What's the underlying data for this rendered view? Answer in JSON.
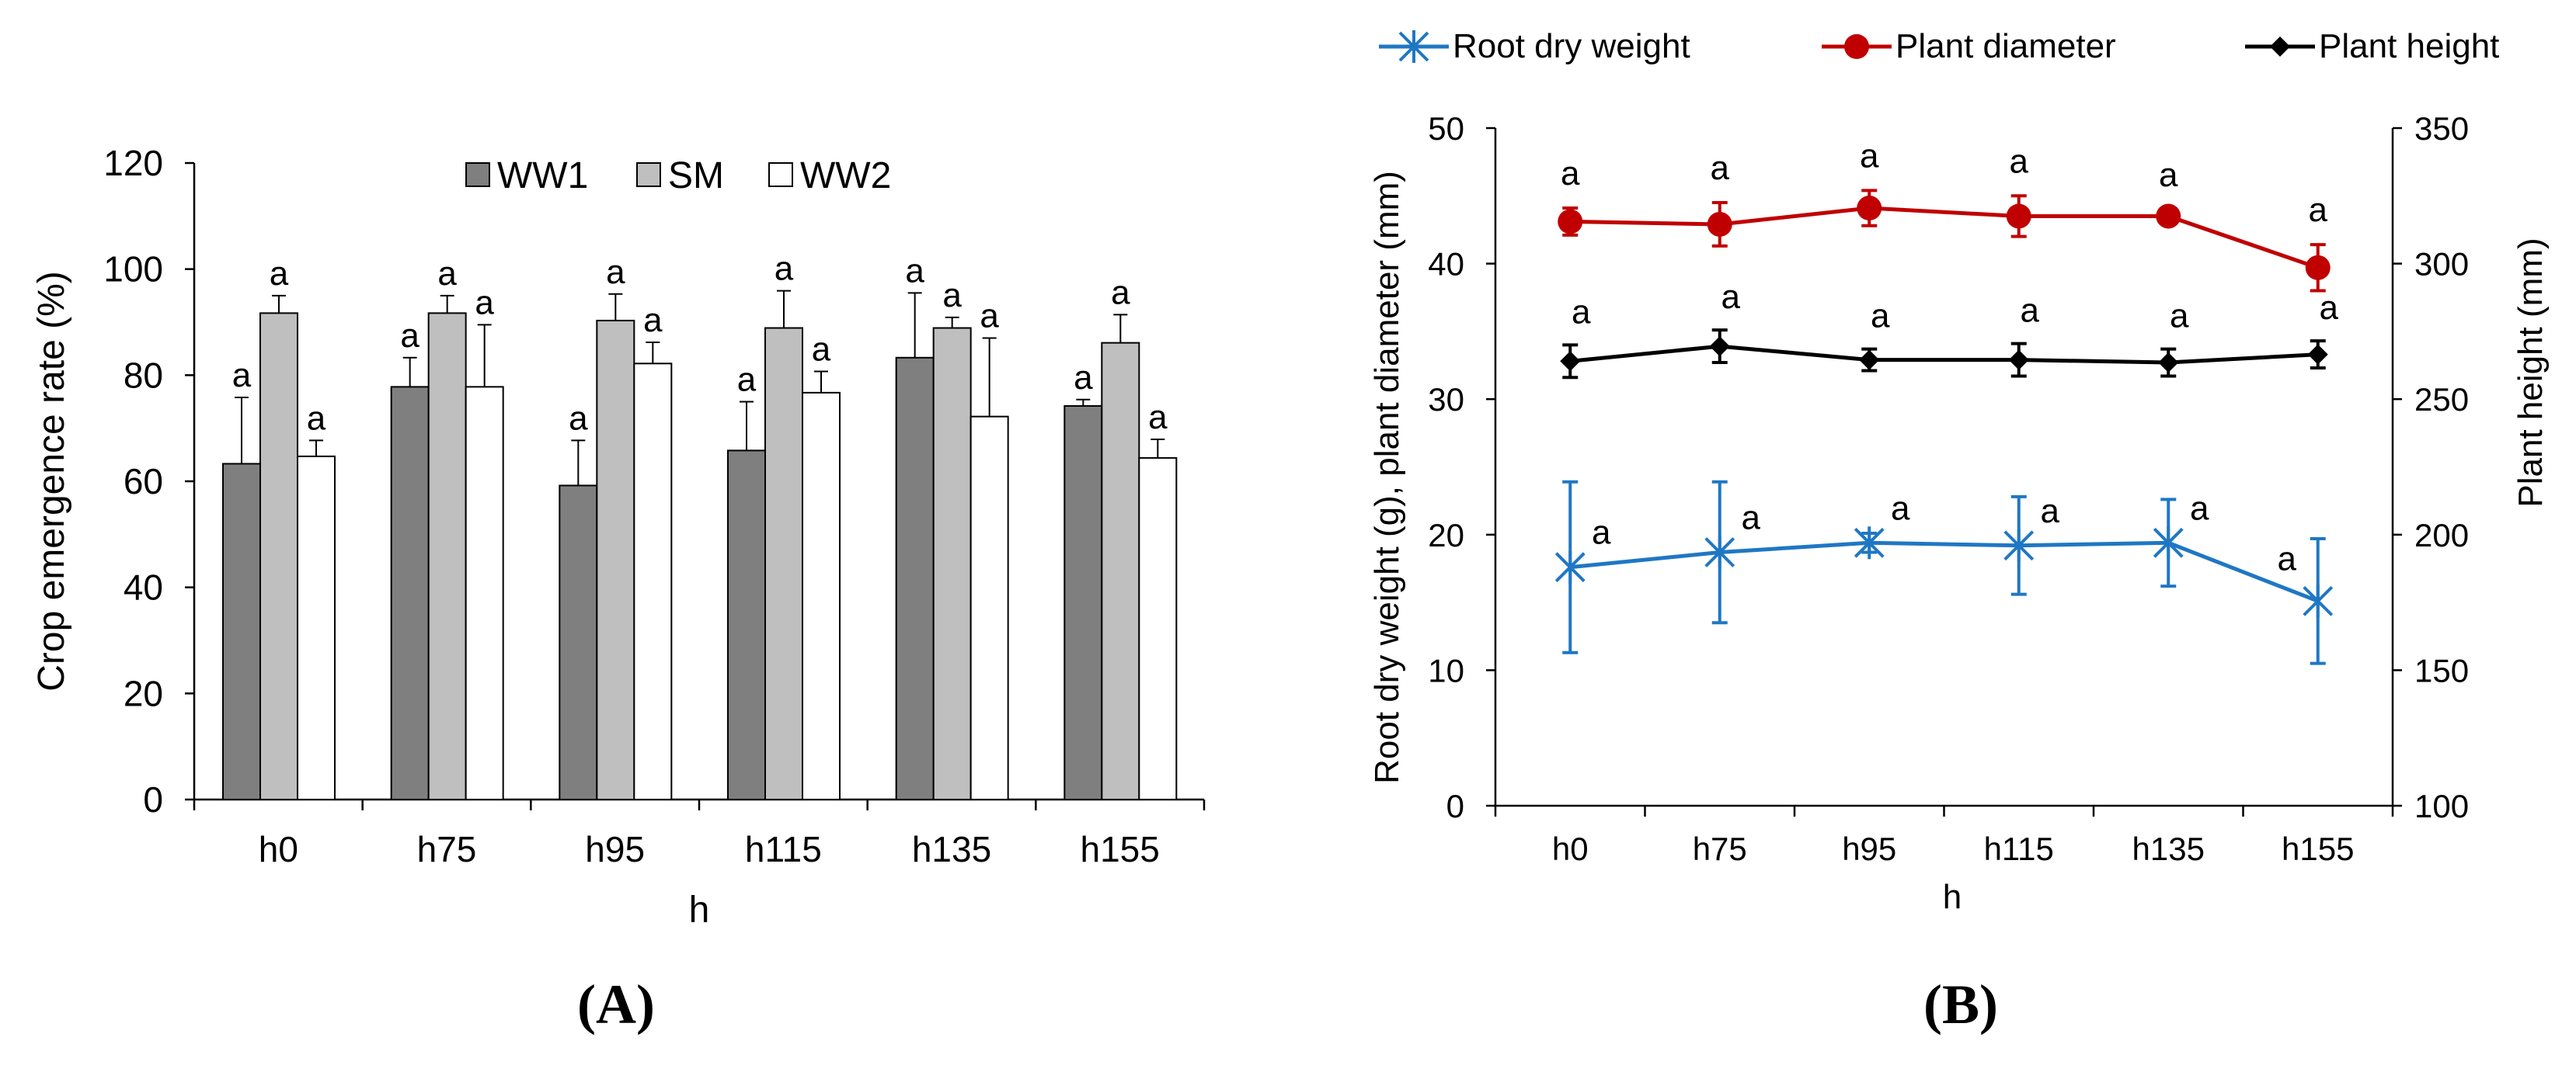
{
  "colors": {
    "ww1": "#7f7f7f",
    "sm": "#bfbfbf",
    "ww2": "#ffffff",
    "root": "#1f77c4",
    "diameter": "#c00000",
    "height": "#000000"
  },
  "chart_data": [
    {
      "type": "bar",
      "panel_label": "(A)",
      "panel_letter": "A",
      "xlabel": "h",
      "ylabel": "Crop emergence rate (%)",
      "ylim": [
        0,
        120
      ],
      "yticks": [
        0,
        20,
        40,
        60,
        80,
        100,
        120
      ],
      "categories": [
        "h0",
        "h75",
        "h95",
        "h115",
        "h135",
        "h155"
      ],
      "legend_position": "top",
      "series": [
        {
          "name": "WW1",
          "values": [
            63.3,
            77.8,
            59.2,
            65.8,
            83.3,
            74.2
          ],
          "errors": [
            12.5,
            5.5,
            8.5,
            9.2,
            12.2,
            1.2
          ],
          "letters": [
            "a",
            "a",
            "a",
            "a",
            "a",
            "a"
          ]
        },
        {
          "name": "SM",
          "values": [
            91.7,
            91.7,
            90.3,
            88.9,
            88.9,
            86.1
          ],
          "errors": [
            3.3,
            3.3,
            5.0,
            7.0,
            2.0,
            5.3
          ],
          "letters": [
            "a",
            "a",
            "a",
            "a",
            "a",
            "a"
          ]
        },
        {
          "name": "WW2",
          "values": [
            64.7,
            77.8,
            82.2,
            76.7,
            72.2,
            64.4
          ],
          "errors": [
            3.0,
            11.7,
            4.0,
            4.0,
            14.8,
            3.5
          ],
          "letters": [
            "a",
            "a",
            "a",
            "a",
            "a",
            "a"
          ]
        }
      ]
    },
    {
      "type": "line",
      "panel_label": "(B)",
      "panel_letter": "B",
      "xlabel": "h",
      "ylabel_left": "Root dry weight (g), plant diameter (mm)",
      "ylabel_right": "Plant height (mm)",
      "ylim_left": [
        0,
        50
      ],
      "yticks_left": [
        0,
        10,
        20,
        30,
        40,
        50
      ],
      "ylim_right": [
        100,
        350
      ],
      "yticks_right": [
        100,
        150,
        200,
        250,
        300,
        350
      ],
      "categories": [
        "h0",
        "h75",
        "h95",
        "h115",
        "h135",
        "h155"
      ],
      "legend_position": "top",
      "series": [
        {
          "name": "Root dry weight",
          "axis": "left",
          "marker": "asterisk",
          "values": [
            17.6,
            18.7,
            19.4,
            19.2,
            19.4,
            15.1
          ],
          "errors": [
            6.3,
            5.2,
            0.7,
            3.6,
            3.2,
            4.6
          ],
          "letters": [
            "a",
            "a",
            "a",
            "a",
            "a",
            "a"
          ]
        },
        {
          "name": "Plant diameter",
          "axis": "left",
          "marker": "circle",
          "values": [
            43.1,
            42.9,
            44.1,
            43.5,
            43.5,
            39.7
          ],
          "errors": [
            1.0,
            1.6,
            1.3,
            1.5,
            0.5,
            1.7
          ],
          "letters": [
            "a",
            "a",
            "a",
            "a",
            "a",
            "a"
          ]
        },
        {
          "name": "Plant height",
          "axis": "right",
          "marker": "diamond",
          "values": [
            264,
            269.5,
            264.5,
            264.5,
            263.5,
            266.5
          ],
          "errors": [
            6,
            6,
            4,
            6,
            5,
            5
          ],
          "letters": [
            "a",
            "a",
            "a",
            "a",
            "a",
            "a"
          ]
        }
      ]
    }
  ]
}
